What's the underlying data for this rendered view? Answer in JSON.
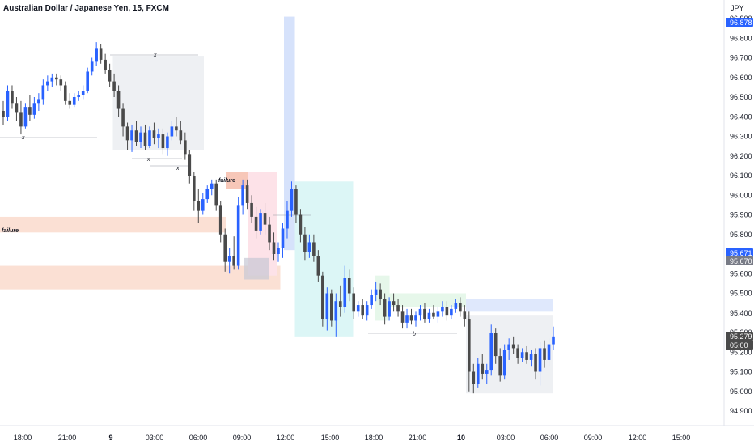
{
  "header": {
    "title": "Australian Dollar / Japanese Yen, 15, FXCM",
    "currency": "JPY"
  },
  "price_badges": [
    {
      "label": "96.878",
      "value": 96.878,
      "color": "#2962ff"
    },
    {
      "label": "95.671",
      "value": 95.671,
      "color": "#2962ff"
    },
    {
      "label": "95.670",
      "value": 95.67,
      "color": "#787b86"
    },
    {
      "label": "95.279",
      "value": 95.279,
      "color": "#4a4a4a"
    },
    {
      "label": "05:00",
      "value": 95.229,
      "color": "#4a4a4a"
    }
  ],
  "chart_data": {
    "type": "candlestick",
    "title": "Australian Dollar / Japanese Yen, 15, FXCM",
    "y_axis": {
      "ticks": [
        "96.900",
        "96.800",
        "96.700",
        "96.600",
        "96.500",
        "96.400",
        "96.300",
        "96.200",
        "96.100",
        "96.000",
        "95.900",
        "95.800",
        "95.700",
        "95.600",
        "95.500",
        "95.400",
        "95.300",
        "95.200",
        "95.100",
        "95.000",
        "94.900"
      ],
      "ylim": [
        94.84,
        96.94
      ],
      "position": "right"
    },
    "x_axis": {
      "ticks": [
        {
          "label": "18:00",
          "bold": false
        },
        {
          "label": "21:00",
          "bold": false
        },
        {
          "label": "9",
          "bold": true
        },
        {
          "label": "03:00",
          "bold": false
        },
        {
          "label": "06:00",
          "bold": false
        },
        {
          "label": "09:00",
          "bold": false
        },
        {
          "label": "12:00",
          "bold": false
        },
        {
          "label": "15:00",
          "bold": false
        },
        {
          "label": "18:00",
          "bold": false
        },
        {
          "label": "21:00",
          "bold": false
        },
        {
          "label": "10",
          "bold": true
        },
        {
          "label": "03:00",
          "bold": false
        },
        {
          "label": "06:00",
          "bold": false
        },
        {
          "label": "09:00",
          "bold": false
        },
        {
          "label": "12:00",
          "bold": false
        },
        {
          "label": "15:00",
          "bold": false
        }
      ],
      "start_time": "16:00"
    },
    "up_color": "#2962ff",
    "down_color": "#4a4a4a",
    "candles": [
      [
        96.43,
        96.48,
        96.36,
        96.4
      ],
      [
        96.4,
        96.56,
        96.38,
        96.53
      ],
      [
        96.53,
        96.56,
        96.44,
        96.47
      ],
      [
        96.47,
        96.5,
        96.38,
        96.42
      ],
      [
        96.42,
        96.48,
        96.31,
        96.35
      ],
      [
        96.35,
        96.47,
        96.34,
        96.45
      ],
      [
        96.45,
        96.51,
        96.38,
        96.41
      ],
      [
        96.41,
        96.5,
        96.39,
        96.47
      ],
      [
        96.47,
        96.52,
        96.43,
        96.49
      ],
      [
        96.49,
        96.59,
        96.46,
        96.56
      ],
      [
        96.56,
        96.61,
        96.53,
        96.58
      ],
      [
        96.58,
        96.62,
        96.55,
        96.6
      ],
      [
        96.6,
        96.62,
        96.56,
        96.59
      ],
      [
        96.59,
        96.61,
        96.53,
        96.56
      ],
      [
        96.56,
        96.58,
        96.46,
        96.48
      ],
      [
        96.48,
        96.52,
        96.44,
        96.46
      ],
      [
        96.46,
        96.52,
        96.45,
        96.5
      ],
      [
        96.5,
        96.53,
        96.48,
        96.51
      ],
      [
        96.51,
        96.56,
        96.49,
        96.53
      ],
      [
        96.53,
        96.65,
        96.52,
        96.63
      ],
      [
        96.63,
        96.7,
        96.61,
        96.68
      ],
      [
        96.68,
        96.78,
        96.66,
        96.75
      ],
      [
        96.75,
        96.77,
        96.67,
        96.69
      ],
      [
        96.69,
        96.72,
        96.62,
        96.64
      ],
      [
        96.64,
        96.67,
        96.55,
        96.58
      ],
      [
        96.58,
        96.62,
        96.5,
        96.53
      ],
      [
        96.53,
        96.56,
        96.4,
        96.44
      ],
      [
        96.44,
        96.47,
        96.3,
        96.35
      ],
      [
        96.35,
        96.37,
        96.23,
        96.28
      ],
      [
        96.28,
        96.36,
        96.22,
        96.33
      ],
      [
        96.33,
        96.38,
        96.25,
        96.27
      ],
      [
        96.27,
        96.35,
        96.24,
        96.32
      ],
      [
        96.32,
        96.36,
        96.23,
        96.25
      ],
      [
        96.25,
        96.35,
        96.24,
        96.33
      ],
      [
        96.33,
        96.37,
        96.26,
        96.29
      ],
      [
        96.29,
        96.34,
        96.24,
        96.31
      ],
      [
        96.31,
        96.34,
        96.21,
        96.24
      ],
      [
        96.24,
        96.32,
        96.2,
        96.3
      ],
      [
        96.3,
        96.38,
        96.28,
        96.35
      ],
      [
        96.35,
        96.4,
        96.3,
        96.33
      ],
      [
        96.33,
        96.38,
        96.26,
        96.28
      ],
      [
        96.28,
        96.32,
        96.18,
        96.21
      ],
      [
        96.21,
        96.23,
        96.06,
        96.1
      ],
      [
        96.1,
        96.12,
        95.92,
        95.97
      ],
      [
        95.97,
        96.03,
        95.86,
        95.92
      ],
      [
        95.92,
        96.01,
        95.9,
        95.98
      ],
      [
        95.98,
        96.05,
        95.96,
        96.03
      ],
      [
        96.03,
        96.08,
        96.0,
        96.06
      ],
      [
        96.06,
        96.08,
        95.92,
        95.95
      ],
      [
        95.95,
        95.97,
        95.76,
        95.8
      ],
      [
        95.8,
        95.83,
        95.61,
        95.66
      ],
      [
        95.66,
        95.73,
        95.6,
        95.69
      ],
      [
        95.69,
        95.79,
        95.62,
        95.64
      ],
      [
        95.64,
        95.99,
        95.62,
        95.95
      ],
      [
        95.95,
        96.08,
        95.9,
        96.05
      ],
      [
        96.05,
        96.08,
        95.93,
        95.96
      ],
      [
        95.96,
        96.0,
        95.86,
        95.89
      ],
      [
        95.89,
        95.94,
        95.78,
        95.82
      ],
      [
        95.82,
        95.93,
        95.8,
        95.91
      ],
      [
        95.91,
        95.96,
        95.8,
        95.85
      ],
      [
        95.85,
        95.89,
        95.72,
        95.76
      ],
      [
        95.76,
        95.81,
        95.67,
        95.7
      ],
      [
        95.7,
        95.76,
        95.66,
        95.73
      ],
      [
        95.73,
        95.86,
        95.68,
        95.83
      ],
      [
        95.83,
        95.97,
        95.78,
        95.92
      ],
      [
        95.92,
        96.07,
        95.89,
        96.03
      ],
      [
        96.03,
        96.05,
        95.86,
        95.9
      ],
      [
        95.9,
        95.93,
        95.76,
        95.8
      ],
      [
        95.8,
        95.84,
        95.67,
        95.71
      ],
      [
        95.71,
        95.8,
        95.68,
        95.76
      ],
      [
        95.76,
        95.8,
        95.66,
        95.69
      ],
      [
        95.69,
        95.72,
        95.56,
        95.59
      ],
      [
        95.59,
        95.61,
        95.33,
        95.37
      ],
      [
        95.37,
        95.53,
        95.31,
        95.5
      ],
      [
        95.5,
        95.52,
        95.33,
        95.36
      ],
      [
        95.36,
        95.5,
        95.28,
        95.46
      ],
      [
        95.46,
        95.54,
        95.38,
        95.43
      ],
      [
        95.43,
        95.64,
        95.4,
        95.58
      ],
      [
        95.58,
        95.62,
        95.46,
        95.5
      ],
      [
        95.5,
        95.53,
        95.37,
        95.41
      ],
      [
        95.41,
        95.46,
        95.38,
        95.44
      ],
      [
        95.44,
        95.47,
        95.37,
        95.39
      ],
      [
        95.39,
        95.46,
        95.36,
        95.44
      ],
      [
        95.44,
        95.52,
        95.42,
        95.49
      ],
      [
        95.49,
        95.56,
        95.46,
        95.52
      ],
      [
        95.52,
        95.55,
        95.44,
        95.47
      ],
      [
        95.47,
        95.5,
        95.34,
        95.38
      ],
      [
        95.38,
        95.48,
        95.36,
        95.46
      ],
      [
        95.46,
        95.5,
        95.41,
        95.44
      ],
      [
        95.44,
        95.47,
        95.38,
        95.41
      ],
      [
        95.41,
        95.44,
        95.32,
        95.35
      ],
      [
        95.35,
        95.42,
        95.32,
        95.39
      ],
      [
        95.39,
        95.42,
        95.34,
        95.36
      ],
      [
        95.36,
        95.41,
        95.33,
        95.39
      ],
      [
        95.39,
        95.44,
        95.36,
        95.42
      ],
      [
        95.42,
        95.45,
        95.35,
        95.37
      ],
      [
        95.37,
        95.42,
        95.35,
        95.4
      ],
      [
        95.4,
        95.44,
        95.37,
        95.38
      ],
      [
        95.38,
        95.43,
        95.35,
        95.41
      ],
      [
        95.41,
        95.46,
        95.38,
        95.43
      ],
      [
        95.43,
        95.46,
        95.36,
        95.39
      ],
      [
        95.39,
        95.44,
        95.37,
        95.42
      ],
      [
        95.42,
        95.47,
        95.4,
        95.45
      ],
      [
        95.45,
        95.48,
        95.38,
        95.41
      ],
      [
        95.41,
        95.44,
        95.33,
        95.37
      ],
      [
        95.37,
        95.41,
        95.0,
        95.1
      ],
      [
        95.1,
        95.14,
        94.99,
        95.04
      ],
      [
        95.04,
        95.17,
        95.02,
        95.14
      ],
      [
        95.14,
        95.19,
        95.06,
        95.09
      ],
      [
        95.09,
        95.14,
        95.04,
        95.11
      ],
      [
        95.11,
        95.34,
        95.08,
        95.3
      ],
      [
        95.3,
        95.32,
        95.14,
        95.18
      ],
      [
        95.18,
        95.22,
        95.05,
        95.08
      ],
      [
        95.08,
        95.24,
        95.06,
        95.21
      ],
      [
        95.21,
        95.27,
        95.16,
        95.24
      ],
      [
        95.24,
        95.28,
        95.19,
        95.22
      ],
      [
        95.22,
        95.24,
        95.14,
        95.17
      ],
      [
        95.17,
        95.22,
        95.15,
        95.2
      ],
      [
        95.2,
        95.23,
        95.14,
        95.16
      ],
      [
        95.16,
        95.21,
        95.13,
        95.19
      ],
      [
        95.19,
        95.22,
        95.06,
        95.1
      ],
      [
        95.1,
        95.25,
        95.03,
        95.22
      ],
      [
        95.22,
        95.26,
        95.12,
        95.16
      ],
      [
        95.16,
        95.27,
        95.13,
        95.24
      ],
      [
        95.24,
        95.33,
        95.21,
        95.28
      ]
    ],
    "annotations": [
      {
        "text": "failure",
        "style": "bold-italic"
      },
      {
        "text": "failure",
        "style": "bold-italic"
      },
      {
        "text": "x",
        "style": "italic"
      },
      {
        "text": "x",
        "style": "italic"
      },
      {
        "text": "x",
        "style": "italic"
      },
      {
        "text": "x",
        "style": "italic"
      },
      {
        "text": "b",
        "style": "italic"
      }
    ],
    "zones": [
      {
        "kind": "supply-zone",
        "from_time": "16:00",
        "to_time": "07:30",
        "y0": 95.81,
        "y1": 95.89,
        "color": "#fbe0d4"
      },
      {
        "kind": "supply-zone",
        "from_time": "16:00",
        "to_time": "11:15",
        "y0": 95.52,
        "y1": 95.64,
        "color": "#fbe0d4"
      },
      {
        "kind": "range-box",
        "from_time": "23:45",
        "to_time": "06:00",
        "y0": 96.23,
        "y1": 96.71,
        "color": "#eef0f3"
      },
      {
        "kind": "failure-box",
        "from_time": "07:30",
        "to_time": "09:00",
        "y0": 96.03,
        "y1": 96.12,
        "color": "#f7c7b8"
      },
      {
        "kind": "pink-box",
        "from_time": "09:00",
        "to_time": "11:00",
        "y0": 95.59,
        "y1": 96.12,
        "color": "#fde2e8"
      },
      {
        "kind": "gray-box",
        "from_time": "08:45",
        "to_time": "10:30",
        "y0": 95.57,
        "y1": 95.68,
        "color": "#c6c8d4"
      },
      {
        "kind": "blue-target",
        "from_time": "11:30",
        "to_time": "12:15",
        "y0": 95.72,
        "y1": 96.91,
        "color": "#d6e2fb"
      },
      {
        "kind": "cyan-target",
        "from_time": "12:15",
        "to_time": "16:15",
        "y0": 95.28,
        "y1": 96.07,
        "color": "#dcf6f6"
      },
      {
        "kind": "green-box",
        "from_time": "17:45",
        "to_time": "18:45",
        "y0": 95.36,
        "y1": 95.59,
        "color": "#e6f7ea"
      },
      {
        "kind": "green-box",
        "from_time": "18:45",
        "to_time": "00:00",
        "y0": 95.43,
        "y1": 95.5,
        "color": "#e6f7ea"
      },
      {
        "kind": "blue-target",
        "from_time": "00:00",
        "to_time": "06:00",
        "y0": 95.41,
        "y1": 95.47,
        "color": "#dfe8fc"
      },
      {
        "kind": "range-box",
        "from_time": "00:00",
        "to_time": "06:00",
        "y0": 94.99,
        "y1": 95.39,
        "color": "#eef0f3"
      }
    ]
  }
}
